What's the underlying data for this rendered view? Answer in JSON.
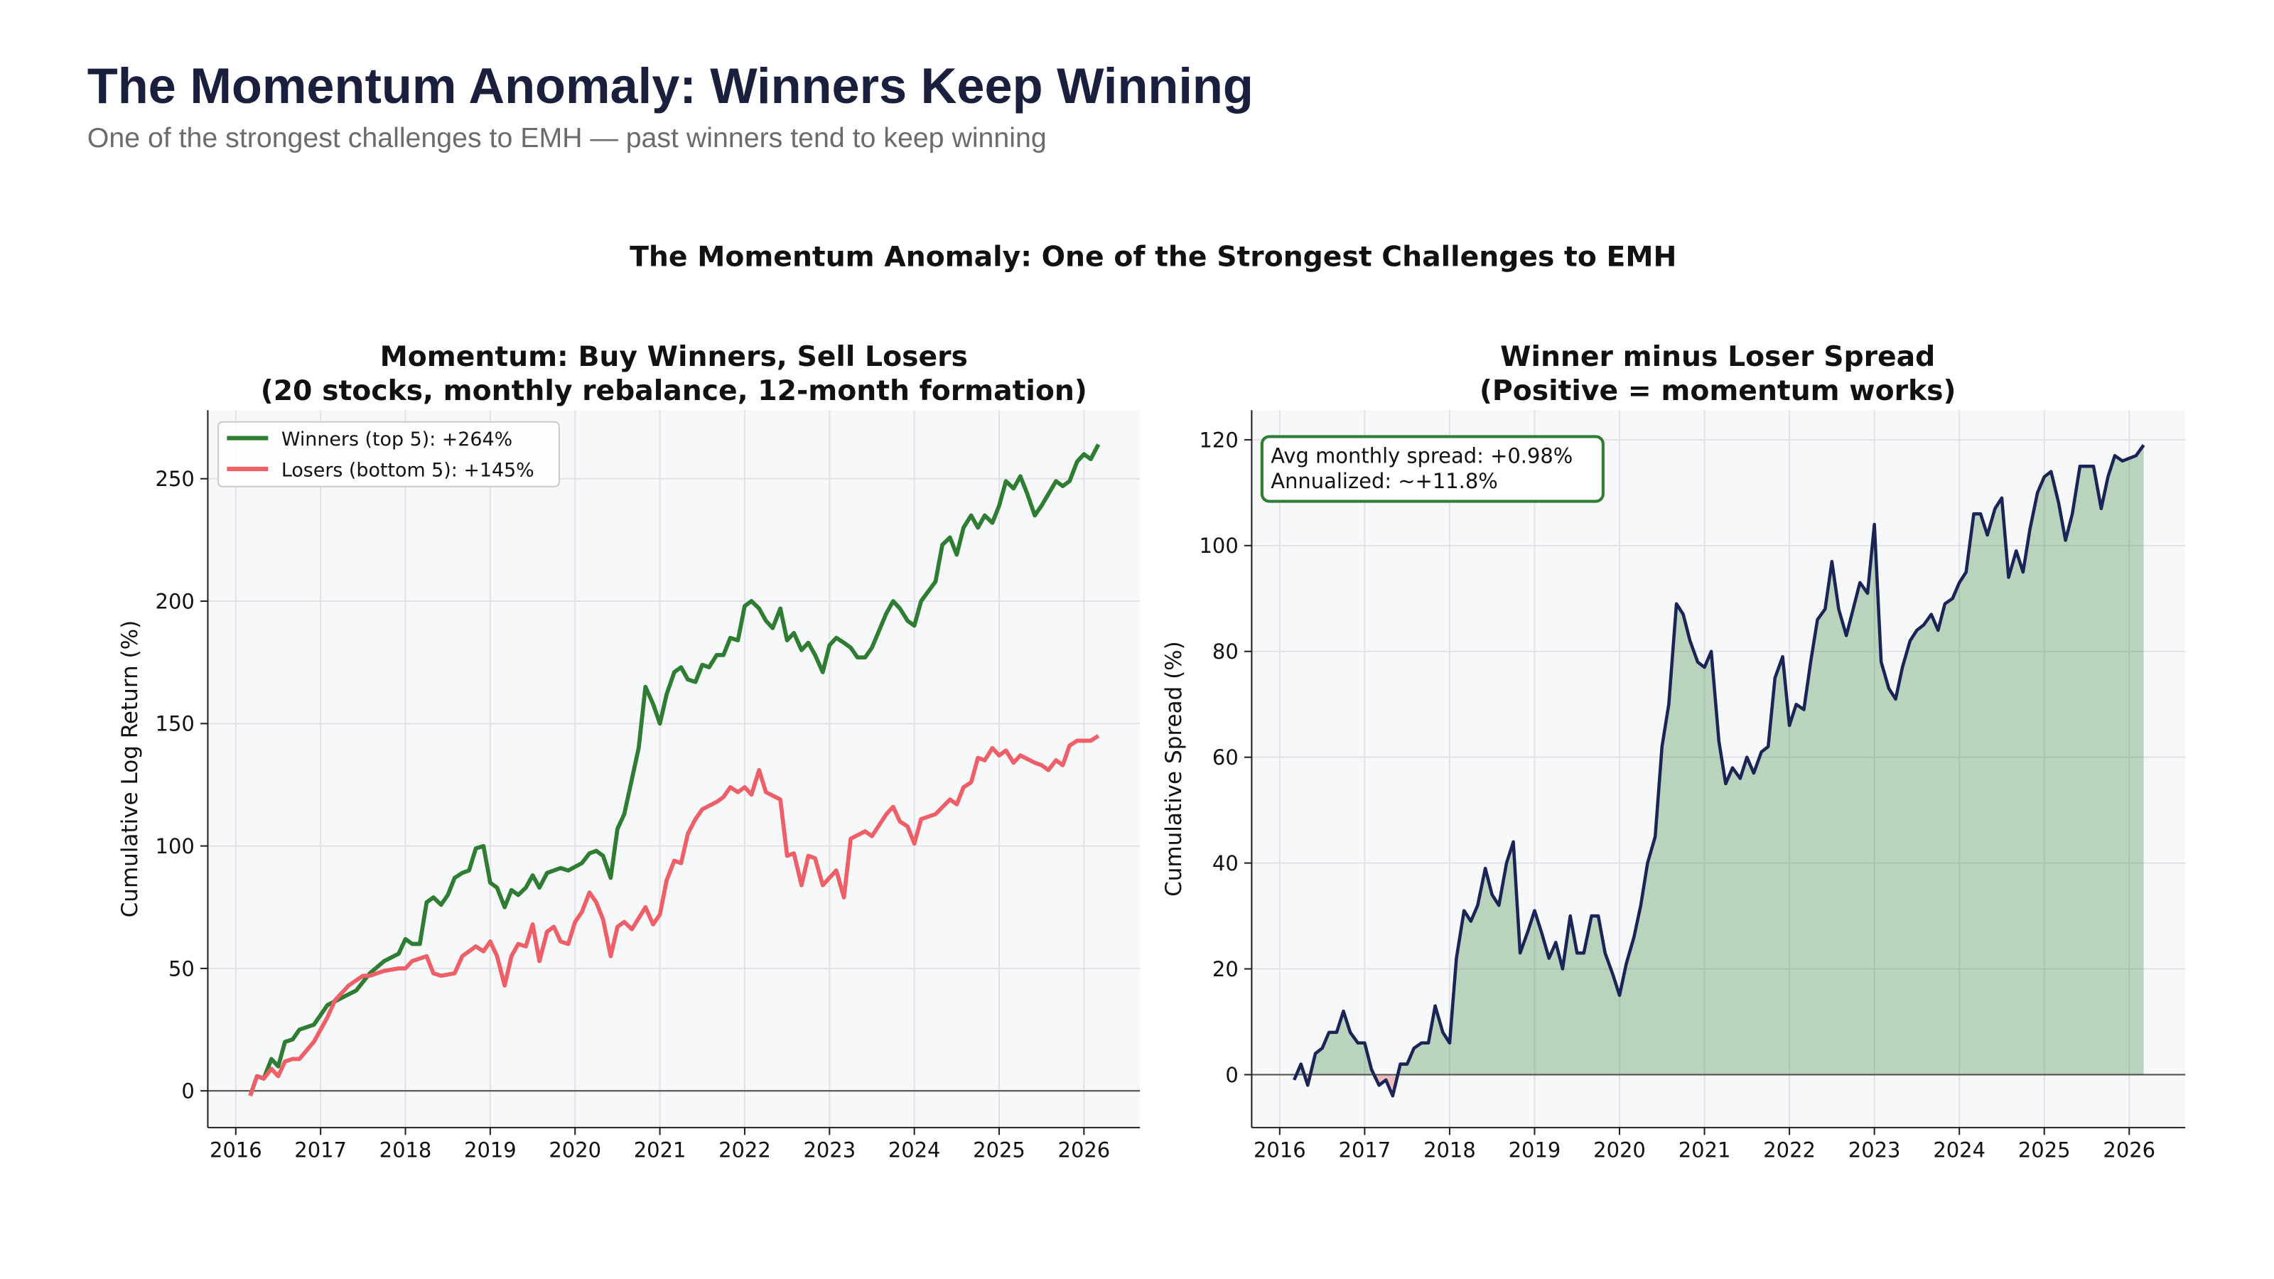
{
  "header": {
    "title": "The Momentum Anomaly: Winners Keep Winning",
    "subtitle": "One of the strongest challenges to EMH — past winners tend to keep winning"
  },
  "figure_title": "The Momentum Anomaly: One of the Strongest Challenges to EMH",
  "chart_data": [
    {
      "type": "line",
      "title": [
        "Momentum: Buy Winners, Sell Losers",
        "(20 stocks, monthly rebalance, 12-month formation)"
      ],
      "ylabel": "Cumulative Log Return (%)",
      "xlim": [
        2015.67,
        2026.66
      ],
      "xticks": [
        2016,
        2017,
        2018,
        2019,
        2020,
        2021,
        2022,
        2023,
        2024,
        2025,
        2026
      ],
      "ylim": [
        -15,
        278
      ],
      "yticks": [
        0,
        50,
        100,
        150,
        200,
        250
      ],
      "grid": true,
      "hline": 0,
      "legend": "upper-left",
      "series": [
        {
          "name": "Winners (top 5): +264%",
          "color": "#2e7d32",
          "x": [
            2016.17,
            2016.25,
            2016.33,
            2016.42,
            2016.5,
            2016.58,
            2016.67,
            2016.75,
            2016.92,
            2017.08,
            2017.25,
            2017.42,
            2017.58,
            2017.75,
            2017.92,
            2018.0,
            2018.08,
            2018.17,
            2018.25,
            2018.33,
            2018.42,
            2018.5,
            2018.58,
            2018.67,
            2018.75,
            2018.83,
            2018.92,
            2019.0,
            2019.08,
            2019.17,
            2019.25,
            2019.33,
            2019.42,
            2019.5,
            2019.58,
            2019.67,
            2019.83,
            2019.92,
            2020.08,
            2020.17,
            2020.25,
            2020.33,
            2020.42,
            2020.5,
            2020.58,
            2020.75,
            2020.83,
            2020.92,
            2021.0,
            2021.08,
            2021.17,
            2021.25,
            2021.33,
            2021.42,
            2021.5,
            2021.58,
            2021.67,
            2021.75,
            2021.83,
            2021.92,
            2022.0,
            2022.08,
            2022.17,
            2022.25,
            2022.33,
            2022.42,
            2022.5,
            2022.58,
            2022.67,
            2022.75,
            2022.83,
            2022.92,
            2023.0,
            2023.08,
            2023.17,
            2023.25,
            2023.33,
            2023.42,
            2023.5,
            2023.67,
            2023.75,
            2023.83,
            2023.92,
            2024.0,
            2024.08,
            2024.25,
            2024.33,
            2024.42,
            2024.5,
            2024.58,
            2024.67,
            2024.75,
            2024.83,
            2024.92,
            2025.0,
            2025.08,
            2025.17,
            2025.25,
            2025.33,
            2025.42,
            2025.5,
            2025.67,
            2025.75,
            2025.83,
            2025.92,
            2026.0,
            2026.08,
            2026.17
          ],
          "values": [
            -2,
            6,
            5,
            13,
            10,
            20,
            21,
            25,
            27,
            35,
            38,
            41,
            48,
            53,
            56,
            62,
            60,
            60,
            77,
            79,
            76,
            80,
            87,
            89,
            90,
            99,
            100,
            85,
            83,
            75,
            82,
            80,
            83,
            88,
            83,
            89,
            91,
            90,
            93,
            97,
            98,
            96,
            87,
            107,
            113,
            140,
            165,
            158,
            150,
            162,
            171,
            173,
            168,
            167,
            174,
            173,
            178,
            178,
            185,
            184,
            198,
            200,
            197,
            192,
            189,
            197,
            184,
            187,
            180,
            183,
            178,
            171,
            182,
            185,
            183,
            181,
            177,
            177,
            181,
            195,
            200,
            197,
            192,
            190,
            200,
            208,
            223,
            226,
            219,
            230,
            235,
            230,
            235,
            232,
            239,
            249,
            246,
            251,
            244,
            235,
            239,
            249,
            247,
            249,
            257,
            260,
            258,
            264
          ]
        },
        {
          "name": "Losers (bottom 5): +145%",
          "color": "#ef5f67",
          "x": [
            2016.17,
            2016.25,
            2016.33,
            2016.42,
            2016.5,
            2016.58,
            2016.67,
            2016.75,
            2016.92,
            2017.08,
            2017.17,
            2017.33,
            2017.5,
            2017.58,
            2017.75,
            2017.92,
            2018.0,
            2018.08,
            2018.25,
            2018.33,
            2018.42,
            2018.58,
            2018.67,
            2018.75,
            2018.83,
            2018.92,
            2019.0,
            2019.08,
            2019.17,
            2019.25,
            2019.33,
            2019.42,
            2019.5,
            2019.58,
            2019.67,
            2019.75,
            2019.83,
            2019.92,
            2020.0,
            2020.08,
            2020.17,
            2020.25,
            2020.33,
            2020.42,
            2020.5,
            2020.58,
            2020.67,
            2020.83,
            2020.92,
            2021.0,
            2021.08,
            2021.17,
            2021.25,
            2021.33,
            2021.42,
            2021.5,
            2021.67,
            2021.75,
            2021.83,
            2021.92,
            2022.0,
            2022.08,
            2022.17,
            2022.25,
            2022.42,
            2022.5,
            2022.58,
            2022.67,
            2022.75,
            2022.83,
            2022.92,
            2023.08,
            2023.17,
            2023.25,
            2023.42,
            2023.5,
            2023.67,
            2023.75,
            2023.83,
            2023.92,
            2024.0,
            2024.08,
            2024.25,
            2024.42,
            2024.5,
            2024.58,
            2024.67,
            2024.75,
            2024.83,
            2024.92,
            2025.0,
            2025.08,
            2025.17,
            2025.25,
            2025.42,
            2025.5,
            2025.58,
            2025.67,
            2025.75,
            2025.83,
            2025.92,
            2026.08,
            2026.17
          ],
          "values": [
            -2,
            6,
            5,
            9,
            6,
            12,
            13,
            13,
            20,
            30,
            37,
            43,
            47,
            47,
            49,
            50,
            50,
            53,
            55,
            48,
            47,
            48,
            55,
            57,
            59,
            57,
            61,
            55,
            43,
            55,
            60,
            59,
            68,
            53,
            65,
            67,
            61,
            60,
            69,
            73,
            81,
            77,
            70,
            55,
            67,
            69,
            66,
            75,
            68,
            72,
            86,
            94,
            93,
            105,
            111,
            115,
            118,
            120,
            124,
            122,
            124,
            121,
            131,
            122,
            119,
            96,
            97,
            84,
            96,
            95,
            84,
            90,
            79,
            103,
            106,
            104,
            113,
            116,
            110,
            108,
            101,
            111,
            113,
            119,
            117,
            124,
            126,
            136,
            135,
            140,
            137,
            139,
            134,
            137,
            134,
            133,
            131,
            135,
            133,
            141,
            143,
            143,
            145
          ]
        }
      ]
    },
    {
      "type": "line",
      "title": [
        "Winner minus Loser Spread",
        "(Positive = momentum works)"
      ],
      "ylabel": "Cumulative Spread (%)",
      "xlim": [
        2015.67,
        2026.66
      ],
      "xticks": [
        2016,
        2017,
        2018,
        2019,
        2020,
        2021,
        2022,
        2023,
        2024,
        2025,
        2026
      ],
      "ylim": [
        -10,
        125.6
      ],
      "yticks": [
        0,
        20,
        40,
        60,
        80,
        100,
        120
      ],
      "grid": true,
      "hline": 0,
      "fill_between": {
        "positive_color": "#2e7d32",
        "negative_color": "#e53935"
      },
      "annotation": [
        "Avg monthly spread: +0.98%",
        "Annualized: ~+11.8%"
      ],
      "annotation_color": "#2e7d32",
      "series": [
        {
          "color": "#1a2456",
          "x": [
            2016.17,
            2016.25,
            2016.33,
            2016.42,
            2016.5,
            2016.58,
            2016.67,
            2016.75,
            2016.83,
            2016.92,
            2017.0,
            2017.08,
            2017.17,
            2017.25,
            2017.33,
            2017.42,
            2017.5,
            2017.58,
            2017.67,
            2017.75,
            2017.83,
            2017.92,
            2018.0,
            2018.08,
            2018.17,
            2018.25,
            2018.33,
            2018.42,
            2018.5,
            2018.58,
            2018.67,
            2018.75,
            2018.83,
            2018.92,
            2019.0,
            2019.08,
            2019.17,
            2019.25,
            2019.33,
            2019.42,
            2019.5,
            2019.58,
            2019.67,
            2019.75,
            2019.83,
            2019.92,
            2020.0,
            2020.08,
            2020.17,
            2020.25,
            2020.33,
            2020.42,
            2020.5,
            2020.58,
            2020.67,
            2020.75,
            2020.83,
            2020.92,
            2021.0,
            2021.08,
            2021.17,
            2021.25,
            2021.33,
            2021.42,
            2021.5,
            2021.58,
            2021.67,
            2021.75,
            2021.83,
            2021.92,
            2022.0,
            2022.08,
            2022.17,
            2022.25,
            2022.33,
            2022.42,
            2022.5,
            2022.58,
            2022.67,
            2022.75,
            2022.83,
            2022.92,
            2023.0,
            2023.08,
            2023.17,
            2023.25,
            2023.33,
            2023.42,
            2023.5,
            2023.58,
            2023.67,
            2023.75,
            2023.83,
            2023.92,
            2024.0,
            2024.08,
            2024.17,
            2024.25,
            2024.33,
            2024.42,
            2024.5,
            2024.58,
            2024.67,
            2024.75,
            2024.83,
            2024.92,
            2025.0,
            2025.08,
            2025.17,
            2025.25,
            2025.33,
            2025.42,
            2025.5,
            2025.58,
            2025.67,
            2025.75,
            2025.83,
            2025.92,
            2026.08,
            2026.17
          ],
          "values": [
            -1,
            2,
            -2,
            4,
            5,
            8,
            8,
            12,
            8,
            6,
            6,
            1,
            -2,
            -1,
            -4,
            2,
            2,
            5,
            6,
            6,
            13,
            8,
            6,
            22,
            31,
            29,
            32,
            39,
            34,
            32,
            40,
            44,
            23,
            27,
            31,
            27,
            22,
            25,
            20,
            30,
            23,
            23,
            30,
            30,
            23,
            19,
            15,
            21,
            26,
            32,
            40,
            45,
            62,
            70,
            89,
            87,
            82,
            78,
            77,
            80,
            63,
            55,
            58,
            56,
            60,
            57,
            61,
            62,
            75,
            79,
            66,
            70,
            69,
            78,
            86,
            88,
            97,
            88,
            83,
            88,
            93,
            91,
            104,
            78,
            73,
            71,
            77,
            82,
            84,
            85,
            87,
            84,
            89,
            90,
            93,
            95,
            106,
            106,
            102,
            107,
            109,
            94,
            99,
            95,
            103,
            110,
            113,
            114,
            108,
            101,
            106,
            115,
            115,
            115,
            107,
            113,
            117,
            116,
            117,
            119
          ]
        }
      ]
    }
  ]
}
